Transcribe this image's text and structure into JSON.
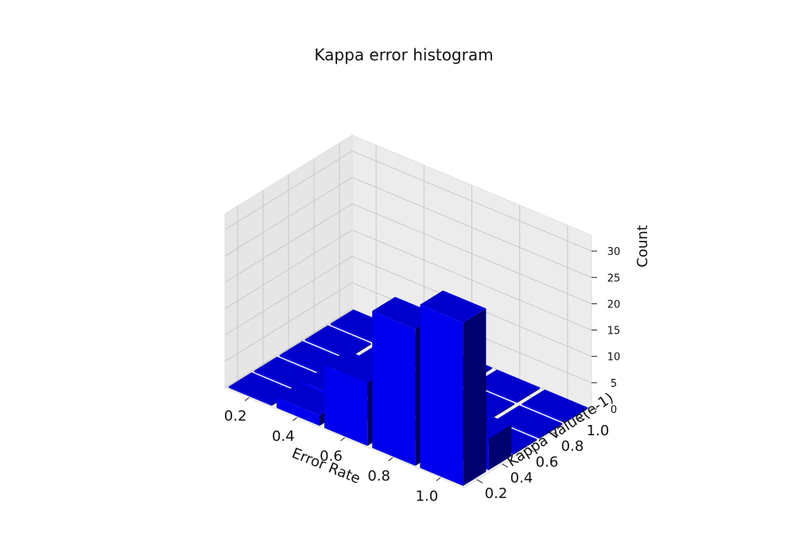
{
  "chart_data": {
    "type": "bar3d",
    "title": "Kappa error histogram",
    "xlabel": "Error Rate",
    "ylabel": "Kappa Value(e-1)",
    "zlabel": "Count",
    "x_ticks": [
      "0.2",
      "0.4",
      "0.6",
      "0.8",
      "1.0"
    ],
    "y_ticks": [
      "0.2",
      "0.4",
      "0.6",
      "0.8",
      "1.0"
    ],
    "z_ticks": [
      "0",
      "5",
      "10",
      "15",
      "20",
      "25",
      "30"
    ],
    "xlim": [
      0.1,
      1.1
    ],
    "ylim": [
      0.1,
      1.1
    ],
    "zlim": [
      0,
      33
    ],
    "bar_color": "#0000ff",
    "pane_color": "#f2f2f2",
    "grid": true,
    "bars": [
      {
        "x": 0.2,
        "y": 0.2,
        "count": 0
      },
      {
        "x": 0.2,
        "y": 0.4,
        "count": 0
      },
      {
        "x": 0.2,
        "y": 0.6,
        "count": 0
      },
      {
        "x": 0.2,
        "y": 0.8,
        "count": 0
      },
      {
        "x": 0.2,
        "y": 1.0,
        "count": 0
      },
      {
        "x": 0.4,
        "y": 0.2,
        "count": 2
      },
      {
        "x": 0.4,
        "y": 0.4,
        "count": 2
      },
      {
        "x": 0.4,
        "y": 0.6,
        "count": 0
      },
      {
        "x": 0.4,
        "y": 0.8,
        "count": 0
      },
      {
        "x": 0.4,
        "y": 1.0,
        "count": 0
      },
      {
        "x": 0.6,
        "y": 0.2,
        "count": 12
      },
      {
        "x": 0.6,
        "y": 0.4,
        "count": 0
      },
      {
        "x": 0.6,
        "y": 0.6,
        "count": 0
      },
      {
        "x": 0.6,
        "y": 0.8,
        "count": 0
      },
      {
        "x": 0.6,
        "y": 1.0,
        "count": 0
      },
      {
        "x": 0.8,
        "y": 0.2,
        "count": 26
      },
      {
        "x": 0.8,
        "y": 0.4,
        "count": 0
      },
      {
        "x": 0.8,
        "y": 0.6,
        "count": 0
      },
      {
        "x": 0.8,
        "y": 0.8,
        "count": 0
      },
      {
        "x": 0.8,
        "y": 1.0,
        "count": 0
      },
      {
        "x": 1.0,
        "y": 0.2,
        "count": 31
      },
      {
        "x": 1.0,
        "y": 0.4,
        "count": 6
      },
      {
        "x": 1.0,
        "y": 0.6,
        "count": 0
      },
      {
        "x": 1.0,
        "y": 0.8,
        "count": 0
      },
      {
        "x": 1.0,
        "y": 1.0,
        "count": 0
      }
    ]
  }
}
